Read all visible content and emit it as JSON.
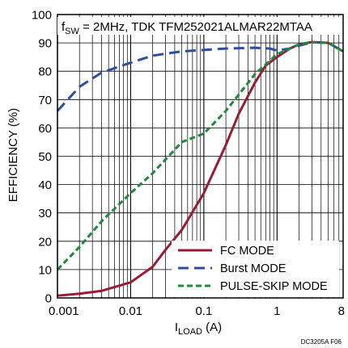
{
  "chart_data": {
    "type": "line",
    "title_main": "f",
    "title_sub": "SW",
    "title_rest": " = 2MHz, TDK TFM252021ALMAR22MTAA",
    "xlabel_main": "I",
    "xlabel_sub": "LOAD",
    "xlabel_rest": " (A)",
    "ylabel": "EFFICIENCY (%)",
    "x_scale": "log",
    "xlim": [
      0.001,
      8
    ],
    "ylim": [
      0,
      100
    ],
    "grid": true,
    "legend_position": "bottom-right",
    "figure_id": "DC3205A F06",
    "x_ticks": [
      {
        "value": 0.001,
        "label": "0.001"
      },
      {
        "value": 0.01,
        "label": "0.01"
      },
      {
        "value": 0.1,
        "label": "0.1"
      },
      {
        "value": 1,
        "label": "1"
      },
      {
        "value": 8,
        "label": "8"
      }
    ],
    "y_ticks": [
      0,
      10,
      20,
      30,
      40,
      50,
      60,
      70,
      80,
      90,
      100
    ],
    "series": [
      {
        "name": "FC MODE",
        "color": "#9b1b35",
        "style": "solid",
        "points": [
          [
            0.001,
            0.8
          ],
          [
            0.002,
            1.5
          ],
          [
            0.004,
            2.5
          ],
          [
            0.01,
            5.5
          ],
          [
            0.02,
            11
          ],
          [
            0.03,
            17
          ],
          [
            0.05,
            24
          ],
          [
            0.1,
            37
          ],
          [
            0.2,
            54
          ],
          [
            0.3,
            65
          ],
          [
            0.5,
            76
          ],
          [
            0.7,
            82
          ],
          [
            1,
            85
          ],
          [
            1.5,
            88
          ],
          [
            2,
            89.5
          ],
          [
            3,
            90.3
          ],
          [
            5,
            90
          ],
          [
            8,
            87
          ]
        ]
      },
      {
        "name": "Burst MODE",
        "color": "#2b4f9e",
        "style": "dashed",
        "points": [
          [
            0.001,
            66
          ],
          [
            0.002,
            74.5
          ],
          [
            0.004,
            79.5
          ],
          [
            0.01,
            83
          ],
          [
            0.02,
            85.5
          ],
          [
            0.05,
            87
          ],
          [
            0.1,
            87.5
          ],
          [
            0.2,
            88
          ],
          [
            0.5,
            88.3
          ],
          [
            0.8,
            88
          ],
          [
            1,
            87.3
          ],
          [
            1.5,
            88
          ],
          [
            2,
            89
          ],
          [
            3,
            90.2
          ],
          [
            5,
            90
          ],
          [
            8,
            87
          ]
        ]
      },
      {
        "name": "PULSE-SKIP MODE",
        "color": "#1e8a3c",
        "style": "dashed",
        "points": [
          [
            0.001,
            10
          ],
          [
            0.002,
            18
          ],
          [
            0.004,
            27
          ],
          [
            0.01,
            37
          ],
          [
            0.02,
            44
          ],
          [
            0.05,
            55
          ],
          [
            0.1,
            58
          ],
          [
            0.2,
            66
          ],
          [
            0.5,
            79
          ],
          [
            1,
            86
          ],
          [
            2,
            89.5
          ],
          [
            3,
            90.2
          ],
          [
            5,
            90
          ],
          [
            8,
            87
          ]
        ]
      }
    ]
  }
}
